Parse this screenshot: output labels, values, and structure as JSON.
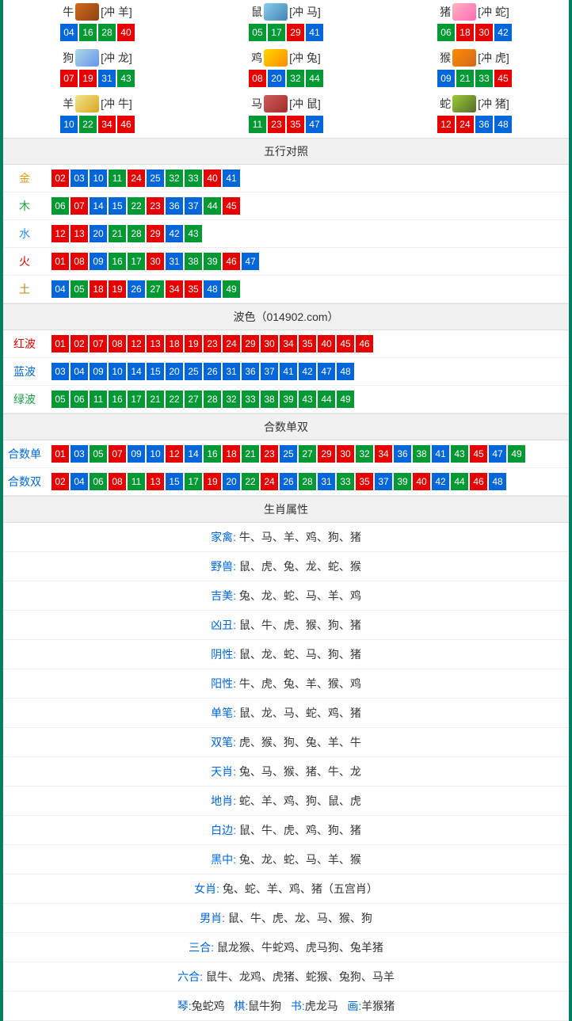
{
  "colors": {
    "red": "#e60000",
    "blue": "#0066d9",
    "green": "#009933",
    "border": "#008060"
  },
  "ball_colors": {
    "01": "red",
    "02": "red",
    "07": "red",
    "08": "red",
    "12": "red",
    "13": "red",
    "18": "red",
    "19": "red",
    "23": "red",
    "24": "red",
    "29": "red",
    "30": "red",
    "34": "red",
    "35": "red",
    "40": "red",
    "45": "red",
    "46": "red",
    "03": "blue",
    "04": "blue",
    "09": "blue",
    "10": "blue",
    "14": "blue",
    "15": "blue",
    "20": "blue",
    "25": "blue",
    "26": "blue",
    "31": "blue",
    "36": "blue",
    "37": "blue",
    "41": "blue",
    "42": "blue",
    "47": "blue",
    "48": "blue",
    "05": "green",
    "06": "green",
    "11": "green",
    "16": "green",
    "17": "green",
    "21": "green",
    "22": "green",
    "27": "green",
    "28": "green",
    "32": "green",
    "33": "green",
    "38": "green",
    "39": "green",
    "43": "green",
    "44": "green",
    "49": "green"
  },
  "zodiac": [
    {
      "name": "牛",
      "icon": "ox",
      "chong": "[冲 羊]",
      "nums": [
        "04",
        "16",
        "28",
        "40"
      ]
    },
    {
      "name": "鼠",
      "icon": "rat",
      "chong": "[冲 马]",
      "nums": [
        "05",
        "17",
        "29",
        "41"
      ]
    },
    {
      "name": "猪",
      "icon": "pig",
      "chong": "[冲 蛇]",
      "nums": [
        "06",
        "18",
        "30",
        "42"
      ]
    },
    {
      "name": "狗",
      "icon": "dog",
      "chong": "[冲 龙]",
      "nums": [
        "07",
        "19",
        "31",
        "43"
      ]
    },
    {
      "name": "鸡",
      "icon": "rooster",
      "chong": "[冲 兔]",
      "nums": [
        "08",
        "20",
        "32",
        "44"
      ]
    },
    {
      "name": "猴",
      "icon": "monkey",
      "chong": "[冲 虎]",
      "nums": [
        "09",
        "21",
        "33",
        "45"
      ]
    },
    {
      "name": "羊",
      "icon": "goat",
      "chong": "[冲 牛]",
      "nums": [
        "10",
        "22",
        "34",
        "46"
      ]
    },
    {
      "name": "马",
      "icon": "horse",
      "chong": "[冲 鼠]",
      "nums": [
        "11",
        "23",
        "35",
        "47"
      ]
    },
    {
      "name": "蛇",
      "icon": "snake",
      "chong": "[冲 猪]",
      "nums": [
        "12",
        "24",
        "36",
        "48"
      ]
    }
  ],
  "wuxing": {
    "title": "五行对照",
    "rows": [
      {
        "label": "金",
        "cls": "gold",
        "nums": [
          "02",
          "03",
          "10",
          "11",
          "24",
          "25",
          "32",
          "33",
          "40",
          "41"
        ]
      },
      {
        "label": "木",
        "cls": "wood",
        "nums": [
          "06",
          "07",
          "14",
          "15",
          "22",
          "23",
          "36",
          "37",
          "44",
          "45"
        ]
      },
      {
        "label": "水",
        "cls": "water",
        "nums": [
          "12",
          "13",
          "20",
          "21",
          "28",
          "29",
          "42",
          "43"
        ]
      },
      {
        "label": "火",
        "cls": "fire",
        "nums": [
          "01",
          "08",
          "09",
          "16",
          "17",
          "30",
          "31",
          "38",
          "39",
          "46",
          "47"
        ]
      },
      {
        "label": "土",
        "cls": "earth",
        "nums": [
          "04",
          "05",
          "18",
          "19",
          "26",
          "27",
          "34",
          "35",
          "48",
          "49"
        ]
      }
    ]
  },
  "bose": {
    "title": "波色（014902.com）",
    "rows": [
      {
        "label": "红波",
        "cls": "redtxt",
        "nums": [
          "01",
          "02",
          "07",
          "08",
          "12",
          "13",
          "18",
          "19",
          "23",
          "24",
          "29",
          "30",
          "34",
          "35",
          "40",
          "45",
          "46"
        ]
      },
      {
        "label": "蓝波",
        "cls": "bluetxt",
        "nums": [
          "03",
          "04",
          "09",
          "10",
          "14",
          "15",
          "20",
          "25",
          "26",
          "31",
          "36",
          "37",
          "41",
          "42",
          "47",
          "48"
        ]
      },
      {
        "label": "绿波",
        "cls": "greentxt",
        "nums": [
          "05",
          "06",
          "11",
          "16",
          "17",
          "21",
          "22",
          "27",
          "28",
          "32",
          "33",
          "38",
          "39",
          "43",
          "44",
          "49"
        ]
      }
    ]
  },
  "heshu": {
    "title": "合数单双",
    "rows": [
      {
        "label": "合数单",
        "cls": "bluetxt",
        "nums": [
          "01",
          "03",
          "05",
          "07",
          "09",
          "10",
          "12",
          "14",
          "16",
          "18",
          "21",
          "23",
          "25",
          "27",
          "29",
          "30",
          "32",
          "34",
          "36",
          "38",
          "41",
          "43",
          "45",
          "47",
          "49"
        ]
      },
      {
        "label": "合数双",
        "cls": "bluetxt",
        "nums": [
          "02",
          "04",
          "06",
          "08",
          "11",
          "13",
          "15",
          "17",
          "19",
          "20",
          "22",
          "24",
          "26",
          "28",
          "31",
          "33",
          "35",
          "37",
          "39",
          "40",
          "42",
          "44",
          "46",
          "48"
        ]
      }
    ]
  },
  "shuxing": {
    "title": "生肖属性",
    "rows": [
      {
        "key": "家禽",
        "val": "牛、马、羊、鸡、狗、猪"
      },
      {
        "key": "野兽",
        "val": "鼠、虎、兔、龙、蛇、猴"
      },
      {
        "key": "吉美",
        "val": "兔、龙、蛇、马、羊、鸡"
      },
      {
        "key": "凶丑",
        "val": "鼠、牛、虎、猴、狗、猪"
      },
      {
        "key": "阴性",
        "val": "鼠、龙、蛇、马、狗、猪"
      },
      {
        "key": "阳性",
        "val": "牛、虎、兔、羊、猴、鸡"
      },
      {
        "key": "单笔",
        "val": "鼠、龙、马、蛇、鸡、猪"
      },
      {
        "key": "双笔",
        "val": "虎、猴、狗、兔、羊、牛"
      },
      {
        "key": "天肖",
        "val": "兔、马、猴、猪、牛、龙"
      },
      {
        "key": "地肖",
        "val": "蛇、羊、鸡、狗、鼠、虎"
      },
      {
        "key": "白边",
        "val": "鼠、牛、虎、鸡、狗、猪"
      },
      {
        "key": "黑中",
        "val": "兔、龙、蛇、马、羊、猴"
      },
      {
        "key": "女肖",
        "val": "兔、蛇、羊、鸡、猪（五宫肖）"
      },
      {
        "key": "男肖",
        "val": "鼠、牛、虎、龙、马、猴、狗"
      },
      {
        "key": "三合",
        "val": "鼠龙猴、牛蛇鸡、虎马狗、兔羊猪"
      },
      {
        "key": "六合",
        "val": "鼠牛、龙鸡、虎猪、蛇猴、兔狗、马羊"
      }
    ],
    "lastline": [
      {
        "k": "琴",
        "v": "兔蛇鸡"
      },
      {
        "k": "棋",
        "v": "鼠牛狗"
      },
      {
        "k": "书",
        "v": "虎龙马"
      },
      {
        "k": "画",
        "v": "羊猴猪"
      }
    ]
  }
}
